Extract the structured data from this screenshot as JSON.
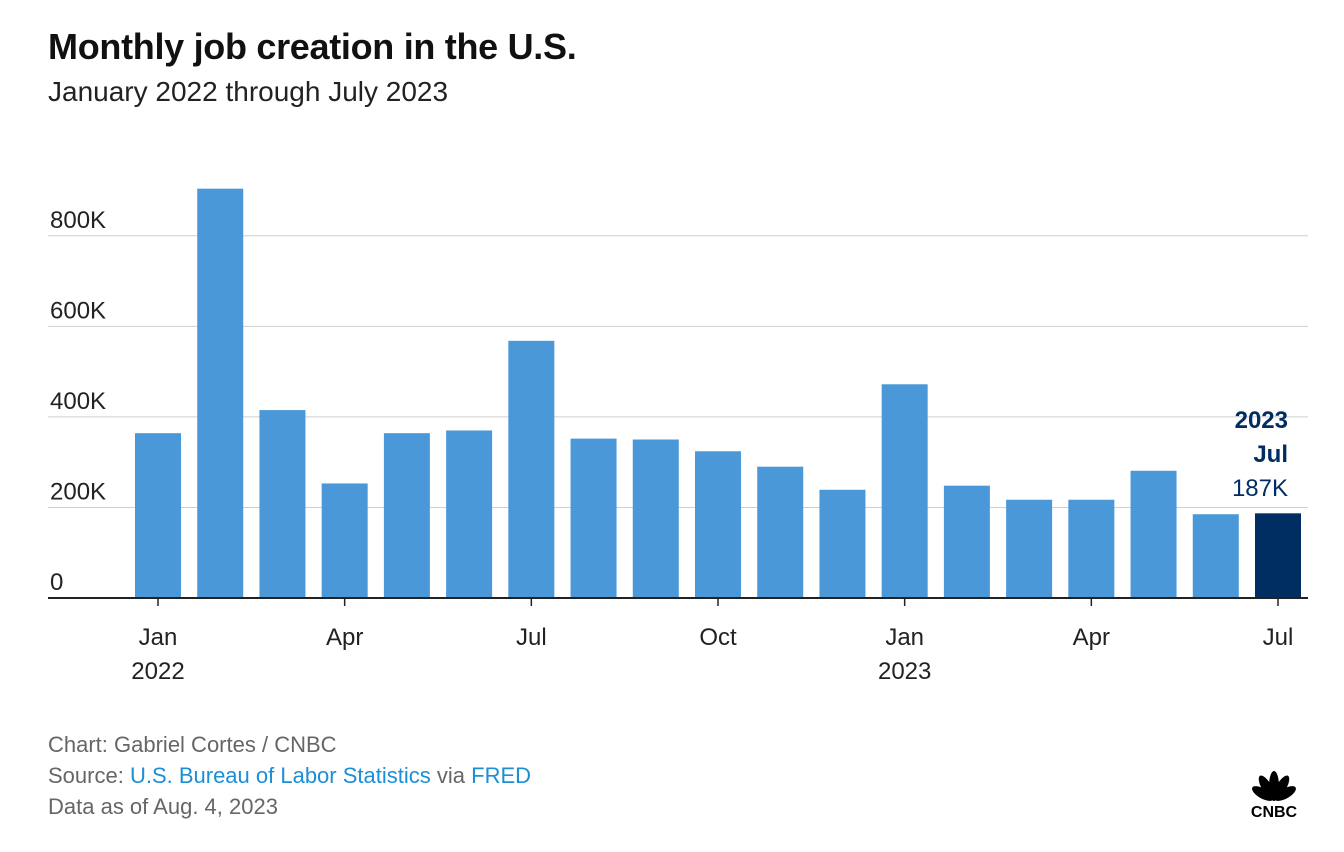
{
  "title": "Monthly job creation in the U.S.",
  "subtitle": "January 2022 through July 2023",
  "colors": {
    "bar": "#4a98d7",
    "highlight": "#002d62",
    "grid": "#cfcfcf",
    "axis": "#222222",
    "link": "#1b8fd6"
  },
  "chart_data": {
    "type": "bar",
    "categories": [
      "2022-01",
      "2022-02",
      "2022-03",
      "2022-04",
      "2022-05",
      "2022-06",
      "2022-07",
      "2022-08",
      "2022-09",
      "2022-10",
      "2022-11",
      "2022-12",
      "2023-01",
      "2023-02",
      "2023-03",
      "2023-04",
      "2023-05",
      "2023-06",
      "2023-07"
    ],
    "values": [
      364,
      904,
      415,
      253,
      364,
      370,
      568,
      352,
      350,
      324,
      290,
      239,
      472,
      248,
      217,
      217,
      281,
      185,
      187
    ],
    "unit": "K",
    "ylim": [
      0,
      900
    ],
    "yticks": [
      0,
      200,
      400,
      600,
      800
    ],
    "ytick_labels": [
      "0",
      "200K",
      "400K",
      "600K",
      "800K"
    ],
    "xticks": [
      {
        "index": 0,
        "label": "Jan",
        "sublabel": "2022"
      },
      {
        "index": 3,
        "label": "Apr",
        "sublabel": ""
      },
      {
        "index": 6,
        "label": "Jul",
        "sublabel": ""
      },
      {
        "index": 9,
        "label": "Oct",
        "sublabel": ""
      },
      {
        "index": 12,
        "label": "Jan",
        "sublabel": "2023"
      },
      {
        "index": 15,
        "label": "Apr",
        "sublabel": ""
      },
      {
        "index": 18,
        "label": "Jul",
        "sublabel": ""
      }
    ],
    "highlight_index": 18,
    "annotation": {
      "year": "2023",
      "month": "Jul",
      "value": "187K"
    },
    "grid": true,
    "legend": "none"
  },
  "footer": {
    "credit": "Chart: Gabriel Cortes / CNBC",
    "source_prefix": "Source: ",
    "source_link1": "U.S. Bureau of Labor Statistics",
    "source_via": " via ",
    "source_link2": "FRED",
    "date": "Data as of Aug. 4, 2023"
  },
  "logo": {
    "text": "CNBC",
    "icon": "peacock-icon"
  }
}
